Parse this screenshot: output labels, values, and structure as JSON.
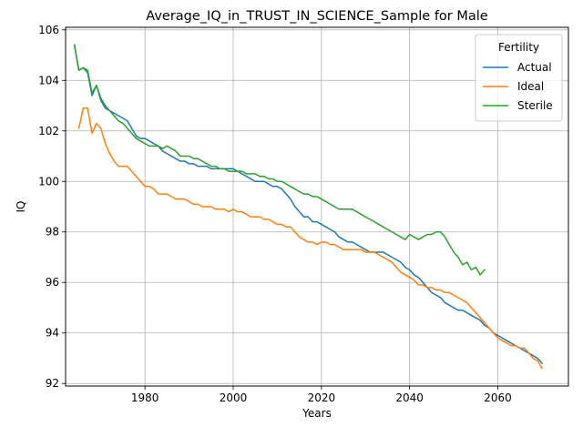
{
  "chart_data": {
    "type": "line",
    "title": "Average_IQ_in_TRUST_IN_SCIENCE_Sample for Male",
    "xlabel": "Years",
    "ylabel": "IQ",
    "xlim": [
      1962,
      2076
    ],
    "ylim": [
      91.9,
      106.1
    ],
    "xticks": [
      1960,
      1980,
      2000,
      2020,
      2040,
      2060
    ],
    "yticks": [
      92,
      94,
      96,
      98,
      100,
      102,
      104,
      106
    ],
    "grid": true,
    "legend": {
      "title": "Fertility",
      "placement": "top-right"
    },
    "series": [
      {
        "name": "Actual",
        "color": "#1f77b4",
        "x": [
          1964,
          1965,
          1966,
          1967,
          1968,
          1969,
          1970,
          1971,
          1972,
          1973,
          1974,
          1975,
          1976,
          1977,
          1978,
          1979,
          1980,
          1981,
          1982,
          1983,
          1984,
          1985,
          1986,
          1987,
          1988,
          1989,
          1990,
          1991,
          1992,
          1993,
          1994,
          1995,
          1996,
          1997,
          1998,
          1999,
          2000,
          2001,
          2002,
          2003,
          2004,
          2005,
          2006,
          2007,
          2008,
          2009,
          2010,
          2011,
          2012,
          2013,
          2014,
          2015,
          2016,
          2017,
          2018,
          2019,
          2020,
          2021,
          2022,
          2023,
          2024,
          2025,
          2026,
          2027,
          2028,
          2029,
          2030,
          2031,
          2032,
          2033,
          2034,
          2035,
          2036,
          2037,
          2038,
          2039,
          2040,
          2041,
          2042,
          2043,
          2044,
          2045,
          2046,
          2047,
          2048,
          2049,
          2050,
          2051,
          2052,
          2053,
          2054,
          2055,
          2056,
          2057,
          2058,
          2059,
          2060,
          2061,
          2062,
          2063,
          2064,
          2065,
          2066,
          2067,
          2068,
          2069,
          2070
        ],
        "values": [
          105.4,
          104.4,
          104.5,
          104.3,
          103.4,
          103.8,
          103.2,
          102.9,
          102.8,
          102.7,
          102.6,
          102.5,
          102.4,
          102.1,
          101.8,
          101.7,
          101.7,
          101.6,
          101.5,
          101.4,
          101.2,
          101.1,
          101.0,
          100.9,
          100.8,
          100.8,
          100.7,
          100.7,
          100.6,
          100.6,
          100.6,
          100.5,
          100.5,
          100.5,
          100.5,
          100.5,
          100.5,
          100.4,
          100.3,
          100.2,
          100.1,
          100.0,
          100.0,
          100.0,
          99.9,
          99.8,
          99.8,
          99.7,
          99.5,
          99.3,
          99.0,
          98.8,
          98.6,
          98.6,
          98.4,
          98.4,
          98.3,
          98.2,
          98.1,
          98.0,
          97.8,
          97.7,
          97.6,
          97.6,
          97.5,
          97.4,
          97.3,
          97.2,
          97.2,
          97.2,
          97.2,
          97.1,
          97.0,
          96.9,
          96.8,
          96.6,
          96.5,
          96.3,
          96.2,
          96.0,
          95.8,
          95.6,
          95.5,
          95.4,
          95.2,
          95.1,
          95.0,
          94.9,
          94.9,
          94.8,
          94.7,
          94.6,
          94.5,
          94.3,
          94.2,
          94.0,
          93.9,
          93.8,
          93.7,
          93.6,
          93.5,
          93.4,
          93.3,
          93.2,
          93.1,
          93.0,
          92.8
        ]
      },
      {
        "name": "Ideal",
        "color": "#ff7f0e",
        "x": [
          1965,
          1966,
          1967,
          1968,
          1969,
          1970,
          1971,
          1972,
          1973,
          1974,
          1975,
          1976,
          1977,
          1978,
          1979,
          1980,
          1981,
          1982,
          1983,
          1984,
          1985,
          1986,
          1987,
          1988,
          1989,
          1990,
          1991,
          1992,
          1993,
          1994,
          1995,
          1996,
          1997,
          1998,
          1999,
          2000,
          2001,
          2002,
          2003,
          2004,
          2005,
          2006,
          2007,
          2008,
          2009,
          2010,
          2011,
          2012,
          2013,
          2014,
          2015,
          2016,
          2017,
          2018,
          2019,
          2020,
          2021,
          2022,
          2023,
          2024,
          2025,
          2026,
          2027,
          2028,
          2029,
          2030,
          2031,
          2032,
          2033,
          2034,
          2035,
          2036,
          2037,
          2038,
          2039,
          2040,
          2041,
          2042,
          2043,
          2044,
          2045,
          2046,
          2047,
          2048,
          2049,
          2050,
          2051,
          2052,
          2053,
          2054,
          2055,
          2056,
          2057,
          2058,
          2059,
          2060,
          2061,
          2062,
          2063,
          2064,
          2065,
          2066,
          2067,
          2068,
          2069,
          2070
        ],
        "values": [
          102.1,
          102.9,
          102.9,
          101.9,
          102.3,
          102.1,
          101.5,
          101.1,
          100.8,
          100.6,
          100.6,
          100.6,
          100.4,
          100.2,
          100.0,
          99.8,
          99.8,
          99.7,
          99.5,
          99.5,
          99.5,
          99.4,
          99.3,
          99.3,
          99.3,
          99.2,
          99.1,
          99.1,
          99.0,
          99.0,
          99.0,
          98.9,
          98.9,
          98.9,
          98.8,
          98.9,
          98.8,
          98.8,
          98.7,
          98.6,
          98.6,
          98.6,
          98.5,
          98.5,
          98.4,
          98.3,
          98.3,
          98.2,
          98.2,
          98.0,
          97.8,
          97.7,
          97.6,
          97.6,
          97.5,
          97.6,
          97.6,
          97.5,
          97.5,
          97.4,
          97.3,
          97.3,
          97.3,
          97.3,
          97.3,
          97.2,
          97.2,
          97.2,
          97.1,
          97.0,
          96.9,
          96.8,
          96.6,
          96.4,
          96.3,
          96.2,
          96.1,
          95.9,
          95.9,
          95.8,
          95.8,
          95.7,
          95.7,
          95.6,
          95.6,
          95.5,
          95.4,
          95.3,
          95.2,
          95.0,
          94.8,
          94.6,
          94.4,
          94.2,
          94.0,
          93.8,
          93.7,
          93.6,
          93.5,
          93.5,
          93.4,
          93.4,
          93.2,
          93.0,
          92.9,
          92.6
        ]
      },
      {
        "name": "Sterile",
        "color": "#2ca02c",
        "x": [
          1964,
          1965,
          1966,
          1967,
          1968,
          1969,
          1970,
          1971,
          1972,
          1973,
          1974,
          1975,
          1976,
          1977,
          1978,
          1979,
          1980,
          1981,
          1982,
          1983,
          1984,
          1985,
          1986,
          1987,
          1988,
          1989,
          1990,
          1991,
          1992,
          1993,
          1994,
          1995,
          1996,
          1997,
          1998,
          1999,
          2000,
          2001,
          2002,
          2003,
          2004,
          2005,
          2006,
          2007,
          2008,
          2009,
          2010,
          2011,
          2012,
          2013,
          2014,
          2015,
          2016,
          2017,
          2018,
          2019,
          2020,
          2021,
          2022,
          2023,
          2024,
          2025,
          2026,
          2027,
          2028,
          2029,
          2030,
          2031,
          2032,
          2033,
          2034,
          2035,
          2036,
          2037,
          2038,
          2039,
          2040,
          2041,
          2042,
          2043,
          2044,
          2045,
          2046,
          2047,
          2048,
          2049,
          2050,
          2051,
          2052,
          2053,
          2054,
          2055,
          2056,
          2057
        ],
        "values": [
          105.4,
          104.4,
          104.5,
          104.4,
          103.5,
          103.8,
          103.3,
          103.0,
          102.8,
          102.6,
          102.4,
          102.3,
          102.1,
          101.9,
          101.7,
          101.6,
          101.5,
          101.4,
          101.4,
          101.4,
          101.3,
          101.4,
          101.3,
          101.2,
          101.0,
          101.0,
          101.0,
          100.9,
          100.9,
          100.8,
          100.7,
          100.6,
          100.6,
          100.5,
          100.5,
          100.4,
          100.4,
          100.4,
          100.4,
          100.3,
          100.3,
          100.3,
          100.2,
          100.2,
          100.1,
          100.1,
          100.0,
          100.0,
          99.9,
          99.8,
          99.7,
          99.6,
          99.5,
          99.5,
          99.4,
          99.4,
          99.3,
          99.2,
          99.1,
          99.0,
          98.9,
          98.9,
          98.9,
          98.9,
          98.8,
          98.7,
          98.6,
          98.5,
          98.4,
          98.3,
          98.2,
          98.1,
          98.0,
          97.9,
          97.8,
          97.7,
          97.9,
          97.8,
          97.7,
          97.8,
          97.9,
          97.9,
          98.0,
          98.0,
          97.8,
          97.5,
          97.2,
          97.0,
          96.7,
          96.8,
          96.5,
          96.6,
          96.3,
          96.5
        ]
      }
    ]
  }
}
